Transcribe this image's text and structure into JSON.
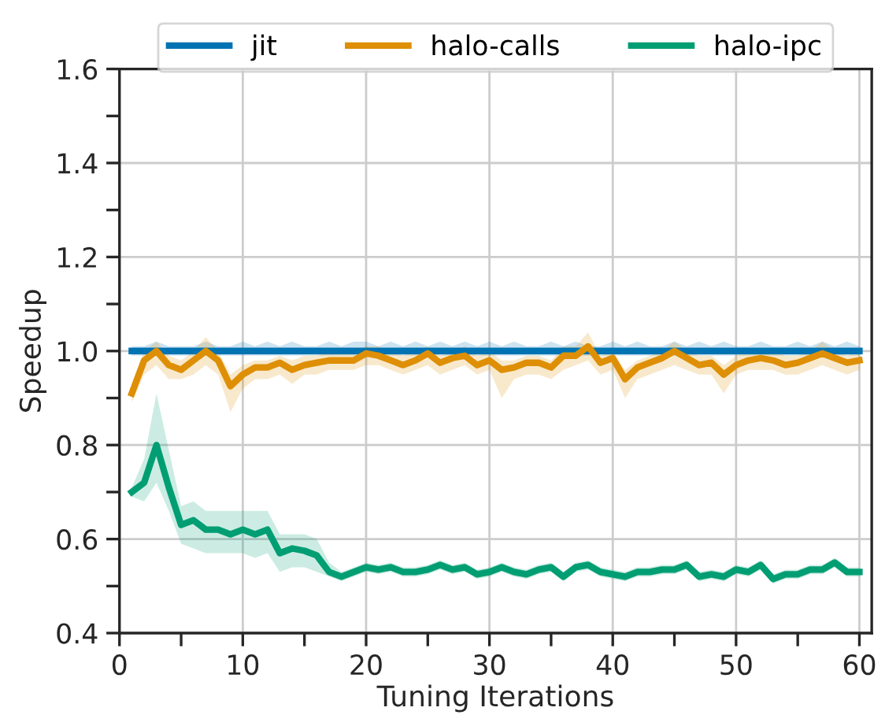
{
  "chart_data": {
    "type": "line",
    "xlabel": "Tuning Iterations",
    "ylabel": "Speedup",
    "xlim": [
      0,
      61
    ],
    "ylim": [
      0.4,
      1.6
    ],
    "xticks": [
      0,
      {
        "value": 5,
        "label": null
      },
      10,
      {
        "value": 15,
        "label": null
      },
      20,
      {
        "value": 25,
        "label": null
      },
      30,
      {
        "value": 35,
        "label": null
      },
      40,
      {
        "value": 45,
        "label": null
      },
      50,
      {
        "value": 55,
        "label": null
      },
      60
    ],
    "yticks": [
      0.4,
      {
        "value": 0.5,
        "label": null
      },
      0.6,
      {
        "value": 0.7,
        "label": null
      },
      0.8,
      {
        "value": 0.9,
        "label": null
      },
      {
        "value": 1,
        "label": "1.0"
      },
      {
        "value": 1.1,
        "label": null
      },
      1.2,
      {
        "value": 1.3,
        "label": null
      },
      1.4,
      {
        "value": 1.5,
        "label": null
      },
      1.6
    ],
    "grid": true,
    "legend": "top",
    "line_style": "solid",
    "marker": "none",
    "x": [
      1,
      2,
      3,
      4,
      5,
      6,
      7,
      8,
      9,
      10,
      11,
      12,
      13,
      14,
      15,
      16,
      17,
      18,
      19,
      20,
      21,
      22,
      23,
      24,
      25,
      26,
      27,
      28,
      29,
      30,
      31,
      32,
      33,
      34,
      35,
      36,
      37,
      38,
      39,
      40,
      41,
      42,
      43,
      44,
      45,
      46,
      47,
      48,
      49,
      50,
      51,
      52,
      53,
      54,
      55,
      56,
      57,
      58,
      59,
      60
    ],
    "series": [
      {
        "name": "jit",
        "color": "#0173b2",
        "values": [
          1.0,
          1.0,
          1.0,
          1.0,
          1.0,
          1.0,
          1.0,
          1.0,
          1.0,
          1.0,
          1.0,
          1.0,
          1.0,
          1.0,
          1.0,
          1.0,
          1.0,
          1.0,
          1.0,
          1.0,
          1.0,
          1.0,
          1.0,
          1.0,
          1.0,
          1.0,
          1.0,
          1.0,
          1.0,
          1.0,
          1.0,
          1.0,
          1.0,
          1.0,
          1.0,
          1.0,
          1.0,
          1.0,
          1.0,
          1.0,
          1.0,
          1.0,
          1.0,
          1.0,
          1.0,
          1.0,
          1.0,
          1.0,
          1.0,
          1.0,
          1.0,
          1.0,
          1.0,
          1.0,
          1.0,
          1.0,
          1.0,
          1.0,
          1.0,
          1.0
        ],
        "lower": [
          0.99,
          0.99,
          0.99,
          0.99,
          0.99,
          0.99,
          0.99,
          0.99,
          0.99,
          0.99,
          0.99,
          0.99,
          0.99,
          0.99,
          0.99,
          0.99,
          0.99,
          0.99,
          0.99,
          0.99,
          0.99,
          0.99,
          0.99,
          0.99,
          0.99,
          0.99,
          0.99,
          0.99,
          0.99,
          0.99,
          0.99,
          0.99,
          0.99,
          0.99,
          0.99,
          0.99,
          0.99,
          0.99,
          0.99,
          0.99,
          0.99,
          0.99,
          0.99,
          0.99,
          0.99,
          0.99,
          0.99,
          0.99,
          0.99,
          0.99,
          0.99,
          0.99,
          0.99,
          0.99,
          0.99,
          0.99,
          0.99,
          0.99,
          0.99,
          0.99
        ],
        "upper": [
          1.01,
          1.01,
          1.02,
          1.01,
          1.01,
          1.01,
          1.02,
          1.01,
          1.01,
          1.02,
          1.01,
          1.02,
          1.01,
          1.02,
          1.01,
          1.01,
          1.02,
          1.01,
          1.02,
          1.02,
          1.01,
          1.02,
          1.01,
          1.02,
          1.01,
          1.02,
          1.01,
          1.02,
          1.01,
          1.02,
          1.01,
          1.02,
          1.01,
          1.01,
          1.02,
          1.01,
          1.02,
          1.01,
          1.01,
          1.02,
          1.01,
          1.02,
          1.01,
          1.01,
          1.02,
          1.01,
          1.02,
          1.01,
          1.02,
          1.01,
          1.01,
          1.02,
          1.01,
          1.01,
          1.02,
          1.01,
          1.02,
          1.01,
          1.02,
          1.01
        ]
      },
      {
        "name": "halo-calls",
        "color": "#de8f05",
        "values": [
          0.91,
          0.98,
          1.0,
          0.97,
          0.96,
          0.98,
          1.0,
          0.98,
          0.925,
          0.95,
          0.965,
          0.965,
          0.975,
          0.96,
          0.97,
          0.975,
          0.98,
          0.98,
          0.98,
          0.995,
          0.99,
          0.98,
          0.97,
          0.98,
          0.995,
          0.975,
          0.985,
          0.99,
          0.97,
          0.98,
          0.96,
          0.965,
          0.975,
          0.975,
          0.965,
          0.99,
          0.99,
          1.01,
          0.975,
          0.985,
          0.94,
          0.965,
          0.975,
          0.985,
          1.0,
          0.985,
          0.97,
          0.975,
          0.95,
          0.97,
          0.98,
          0.985,
          0.98,
          0.97,
          0.975,
          0.985,
          0.995,
          0.985,
          0.975,
          0.98
        ],
        "lower": [
          0.89,
          0.95,
          0.97,
          0.94,
          0.94,
          0.95,
          0.97,
          0.95,
          0.87,
          0.92,
          0.94,
          0.94,
          0.95,
          0.93,
          0.95,
          0.95,
          0.96,
          0.96,
          0.96,
          0.97,
          0.97,
          0.96,
          0.95,
          0.96,
          0.97,
          0.95,
          0.96,
          0.97,
          0.95,
          0.96,
          0.9,
          0.94,
          0.95,
          0.95,
          0.94,
          0.96,
          0.97,
          0.98,
          0.95,
          0.96,
          0.9,
          0.94,
          0.95,
          0.96,
          0.97,
          0.96,
          0.95,
          0.95,
          0.91,
          0.95,
          0.96,
          0.96,
          0.96,
          0.95,
          0.95,
          0.96,
          0.97,
          0.96,
          0.95,
          0.96
        ],
        "upper": [
          0.93,
          1.0,
          1.02,
          0.99,
          0.98,
          1.0,
          1.03,
          1.0,
          0.95,
          0.97,
          0.98,
          0.98,
          0.99,
          0.98,
          0.99,
          0.99,
          1.0,
          1.0,
          1.0,
          1.01,
          1.01,
          1.0,
          0.99,
          1.0,
          1.01,
          0.99,
          1.0,
          1.01,
          0.99,
          1.0,
          0.98,
          0.98,
          0.99,
          0.99,
          0.98,
          1.01,
          1.01,
          1.04,
          0.99,
          1.0,
          0.96,
          0.98,
          0.99,
          1.0,
          1.02,
          1.0,
          0.99,
          0.99,
          0.97,
          0.99,
          1.0,
          1.0,
          1.0,
          0.99,
          0.99,
          1.0,
          1.02,
          1.0,
          0.99,
          1.0
        ]
      },
      {
        "name": "halo-ipc",
        "color": "#029e73",
        "values": [
          0.7,
          0.72,
          0.8,
          0.71,
          0.63,
          0.64,
          0.62,
          0.62,
          0.61,
          0.62,
          0.61,
          0.62,
          0.57,
          0.58,
          0.575,
          0.565,
          0.53,
          0.52,
          0.53,
          0.54,
          0.535,
          0.54,
          0.53,
          0.53,
          0.535,
          0.545,
          0.535,
          0.54,
          0.525,
          0.53,
          0.54,
          0.53,
          0.525,
          0.535,
          0.54,
          0.52,
          0.54,
          0.545,
          0.53,
          0.525,
          0.52,
          0.53,
          0.53,
          0.535,
          0.535,
          0.545,
          0.52,
          0.525,
          0.52,
          0.535,
          0.53,
          0.545,
          0.515,
          0.525,
          0.525,
          0.535,
          0.535,
          0.55,
          0.53,
          0.53
        ],
        "lower": [
          0.69,
          0.68,
          0.72,
          0.66,
          0.59,
          0.58,
          0.57,
          0.57,
          0.57,
          0.57,
          0.56,
          0.57,
          0.53,
          0.54,
          0.54,
          0.53,
          0.52,
          0.51,
          0.52,
          0.53,
          0.525,
          0.53,
          0.52,
          0.52,
          0.525,
          0.535,
          0.525,
          0.53,
          0.515,
          0.52,
          0.53,
          0.52,
          0.515,
          0.525,
          0.53,
          0.51,
          0.53,
          0.535,
          0.52,
          0.515,
          0.51,
          0.52,
          0.52,
          0.525,
          0.525,
          0.535,
          0.51,
          0.515,
          0.51,
          0.525,
          0.52,
          0.535,
          0.505,
          0.515,
          0.515,
          0.525,
          0.525,
          0.54,
          0.52,
          0.52
        ],
        "upper": [
          0.71,
          0.77,
          0.91,
          0.79,
          0.67,
          0.68,
          0.66,
          0.66,
          0.66,
          0.66,
          0.66,
          0.66,
          0.61,
          0.61,
          0.61,
          0.6,
          0.55,
          0.53,
          0.54,
          0.55,
          0.545,
          0.55,
          0.54,
          0.54,
          0.545,
          0.555,
          0.545,
          0.55,
          0.535,
          0.54,
          0.55,
          0.54,
          0.535,
          0.545,
          0.55,
          0.53,
          0.55,
          0.555,
          0.54,
          0.535,
          0.53,
          0.54,
          0.54,
          0.545,
          0.545,
          0.555,
          0.53,
          0.535,
          0.53,
          0.545,
          0.54,
          0.555,
          0.525,
          0.535,
          0.535,
          0.545,
          0.545,
          0.56,
          0.54,
          0.54
        ]
      }
    ]
  }
}
